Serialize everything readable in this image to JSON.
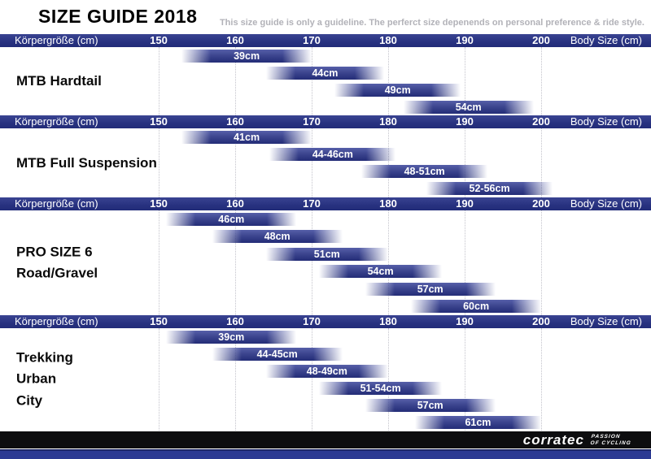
{
  "title": "SIZE GUIDE 2018",
  "disclaimer": "This size guide is only a guideline. The perferct size depenends on personal preference & ride style.",
  "axis": {
    "left_label": "Körpergröße (cm)",
    "right_label": "Body Size (cm)",
    "min": 150,
    "max": 200
  },
  "footer": {
    "brand": "corratec",
    "tagline": [
      "PASSION",
      "OF CYCLING"
    ]
  },
  "colors": {
    "header_bar": "#293381",
    "size_bar": "#3d468f",
    "footer_black": "#0d0d0f",
    "footer_stripe": "#2c3a93",
    "gridline": "#c3c3cb",
    "disclaimer_text": "#b2b2b8"
  },
  "chart_data": {
    "type": "bar",
    "title": "SIZE GUIDE 2018",
    "xlabel": "Body Size (cm)",
    "xlim": [
      150,
      200
    ],
    "x_ticks": [
      150,
      160,
      170,
      180,
      190,
      200
    ],
    "grid": "dotted-vertical",
    "groups": [
      {
        "label_lines": [
          "MTB Hardtail"
        ],
        "bars": [
          {
            "label": "39cm",
            "from": 153,
            "to": 170
          },
          {
            "label": "44cm",
            "from": 164,
            "to": 179.5
          },
          {
            "label": "49cm",
            "from": 173,
            "to": 189.5
          },
          {
            "label": "54cm",
            "from": 182,
            "to": 199
          }
        ]
      },
      {
        "label_lines": [
          "MTB Full Suspension"
        ],
        "bars": [
          {
            "label": "41cm",
            "from": 153,
            "to": 170
          },
          {
            "label": "44-46cm",
            "from": 164.5,
            "to": 181
          },
          {
            "label": "48-51cm",
            "from": 176.5,
            "to": 193
          },
          {
            "label": "52-56cm",
            "from": 185,
            "to": 201.5
          }
        ]
      },
      {
        "label_lines": [
          "PRO SIZE 6",
          "Road/Gravel"
        ],
        "bars": [
          {
            "label": "46cm",
            "from": 151,
            "to": 168
          },
          {
            "label": "48cm",
            "from": 157,
            "to": 174
          },
          {
            "label": "51cm",
            "from": 164,
            "to": 180
          },
          {
            "label": "54cm",
            "from": 171,
            "to": 187
          },
          {
            "label": "57cm",
            "from": 177,
            "to": 194
          },
          {
            "label": "60cm",
            "from": 183,
            "to": 200
          }
        ]
      },
      {
        "label_lines": [
          "Trekking",
          "Urban",
          "City"
        ],
        "bars": [
          {
            "label": "39cm",
            "from": 151,
            "to": 168
          },
          {
            "label": "44-45cm",
            "from": 157,
            "to": 174
          },
          {
            "label": "48-49cm",
            "from": 164,
            "to": 180
          },
          {
            "label": "51-54cm",
            "from": 171,
            "to": 187
          },
          {
            "label": "57cm",
            "from": 177,
            "to": 194
          },
          {
            "label": "61cm",
            "from": 183.5,
            "to": 200
          }
        ]
      }
    ]
  }
}
